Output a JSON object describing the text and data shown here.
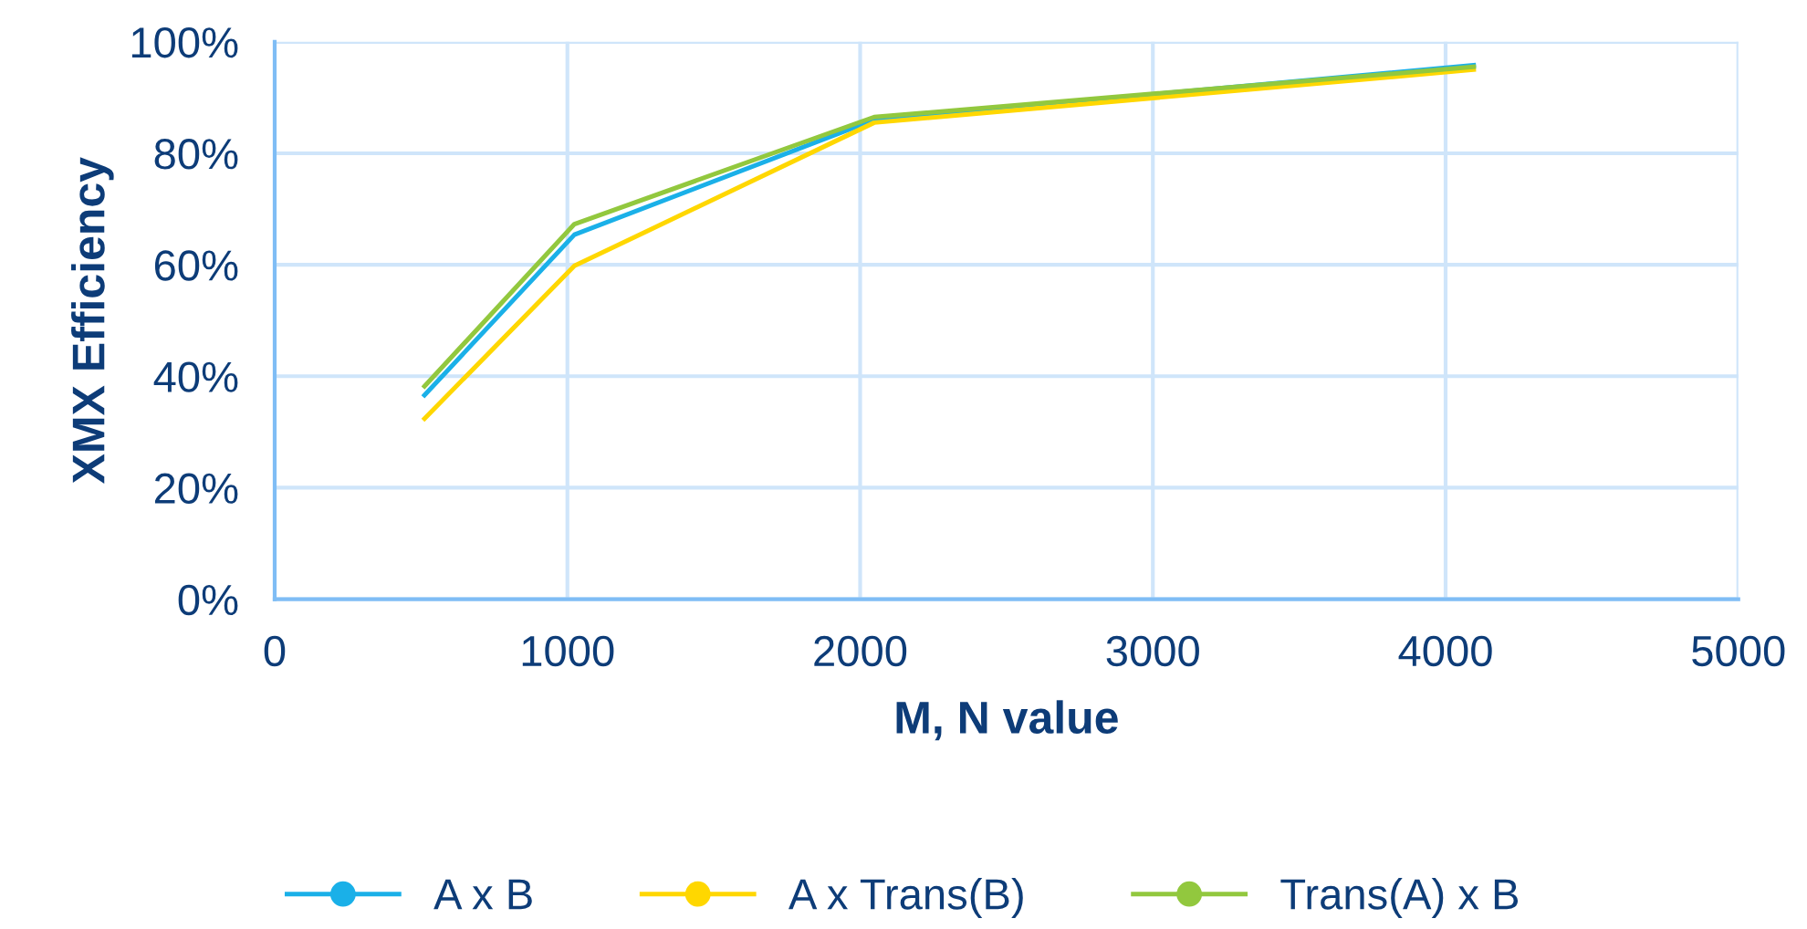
{
  "chart_data": {
    "type": "line",
    "xlabel": "M, N value",
    "ylabel": "XMX Efficiency",
    "x": [
      512,
      1024,
      2048,
      4096
    ],
    "series": [
      {
        "name": "A x B",
        "color": "#1ab0e8",
        "values": [
          36.6,
          65.4,
          86,
          95.8
        ]
      },
      {
        "name": "A x Trans(B)",
        "color": "#ffd700",
        "values": [
          32.4,
          59.8,
          85.5,
          95
        ]
      },
      {
        "name": "Trans(A) x B",
        "color": "#92c83e",
        "values": [
          38.2,
          67.3,
          86.5,
          95.5
        ]
      }
    ],
    "xlim": [
      0,
      5000
    ],
    "xticks": [
      0,
      1000,
      2000,
      3000,
      4000,
      5000
    ],
    "ylim": [
      0,
      100
    ],
    "yticks": [
      {
        "value": 0,
        "label": "0%"
      },
      {
        "value": 20,
        "label": "20%"
      },
      {
        "value": 40,
        "label": "40%"
      },
      {
        "value": 60,
        "label": "60%"
      },
      {
        "value": 80,
        "label": "80%"
      },
      {
        "value": 100,
        "label": "100%"
      }
    ],
    "grid": true,
    "legend": "bottom",
    "line_style": "solid"
  }
}
